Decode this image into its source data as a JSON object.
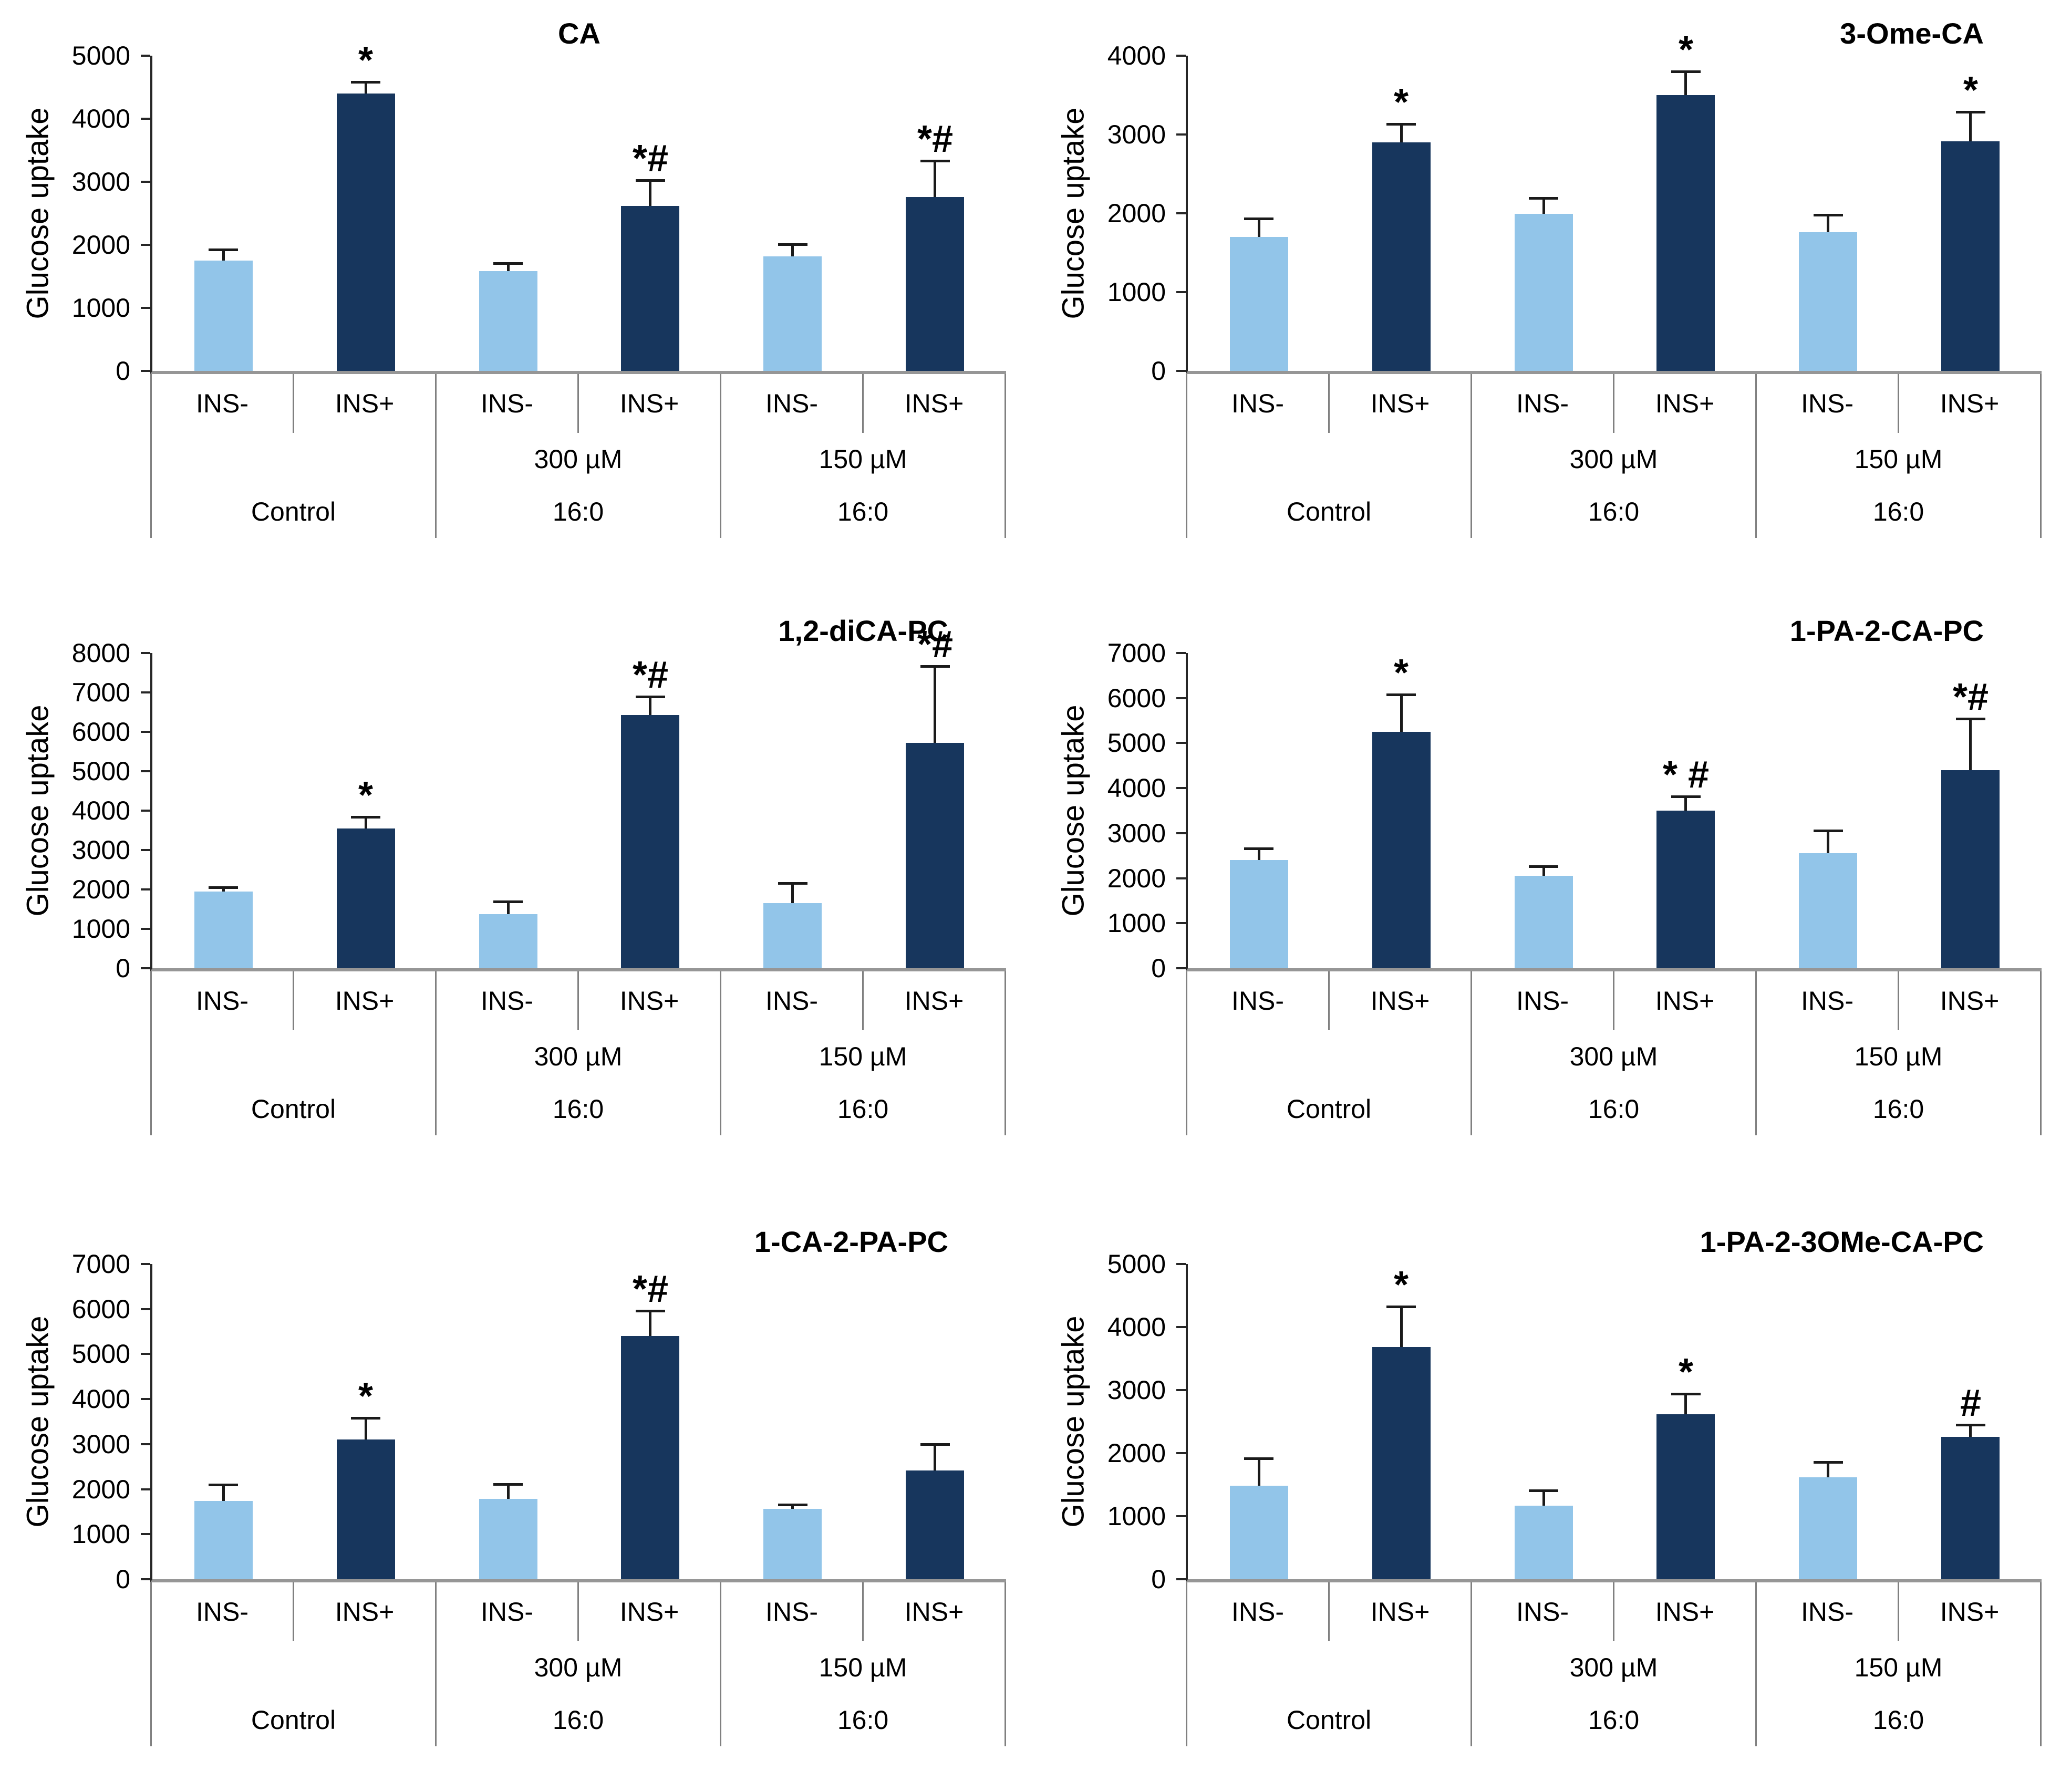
{
  "page": {
    "background": "#ffffff"
  },
  "colors": {
    "ins_minus_bar": "#92C5E9",
    "ins_plus_bar": "#17365D",
    "axis_line": "#262626",
    "baseline": "#969696",
    "table_line": "#808080",
    "error_bar": "#1a1a1a",
    "text": "#000000"
  },
  "series": [
    "INS-",
    "INS+"
  ],
  "chart_data": [
    {
      "type": "bar",
      "title": "CA",
      "ylabel": "Glucose uptake",
      "ylim": [
        0,
        5000
      ],
      "ytick_step": 1000,
      "grid": false,
      "legend": "none",
      "groups": [
        {
          "treatment": "Control",
          "concentration": "",
          "bars": [
            {
              "label": "INS-",
              "value": 1750,
              "error": 150,
              "annotation": ""
            },
            {
              "label": "INS+",
              "value": 4400,
              "error": 160,
              "annotation": "*"
            }
          ]
        },
        {
          "treatment": "16:0",
          "concentration": "300 µM",
          "bars": [
            {
              "label": "INS-",
              "value": 1580,
              "error": 100,
              "annotation": ""
            },
            {
              "label": "INS+",
              "value": 2620,
              "error": 380,
              "annotation": "*#"
            }
          ]
        },
        {
          "treatment": "16:0",
          "concentration": "150 µM",
          "bars": [
            {
              "label": "INS-",
              "value": 1820,
              "error": 170,
              "annotation": ""
            },
            {
              "label": "INS+",
              "value": 2760,
              "error": 550,
              "annotation": "*#"
            }
          ]
        }
      ]
    },
    {
      "type": "bar",
      "title": "3-Ome-CA",
      "ylabel": "Glucose uptake",
      "ylim": [
        0,
        4000
      ],
      "ytick_step": 1000,
      "grid": false,
      "legend": "none",
      "groups": [
        {
          "treatment": "Control",
          "concentration": "",
          "bars": [
            {
              "label": "INS-",
              "value": 1700,
              "error": 210,
              "annotation": ""
            },
            {
              "label": "INS+",
              "value": 2900,
              "error": 210,
              "annotation": "*"
            }
          ]
        },
        {
          "treatment": "16:0",
          "concentration": "300 µM",
          "bars": [
            {
              "label": "INS-",
              "value": 1990,
              "error": 180,
              "annotation": ""
            },
            {
              "label": "INS+",
              "value": 3500,
              "error": 280,
              "annotation": "*"
            }
          ]
        },
        {
          "treatment": "16:0",
          "concentration": "150 µM",
          "bars": [
            {
              "label": "INS-",
              "value": 1760,
              "error": 200,
              "annotation": ""
            },
            {
              "label": "INS+",
              "value": 2910,
              "error": 350,
              "annotation": "*"
            }
          ]
        }
      ]
    },
    {
      "type": "bar",
      "title": "1,2-diCA-PC",
      "ylabel": "Glucose uptake",
      "ylim": [
        0,
        8000
      ],
      "ytick_step": 1000,
      "grid": false,
      "legend": "none",
      "groups": [
        {
          "treatment": "Control",
          "concentration": "",
          "bars": [
            {
              "label": "INS-",
              "value": 1950,
              "error": 60,
              "annotation": ""
            },
            {
              "label": "INS+",
              "value": 3550,
              "error": 250,
              "annotation": "*"
            }
          ]
        },
        {
          "treatment": "16:0",
          "concentration": "300 µM",
          "bars": [
            {
              "label": "INS-",
              "value": 1380,
              "error": 280,
              "annotation": ""
            },
            {
              "label": "INS+",
              "value": 6430,
              "error": 420,
              "annotation": "*#"
            }
          ]
        },
        {
          "treatment": "16:0",
          "concentration": "150 µM",
          "bars": [
            {
              "label": "INS-",
              "value": 1650,
              "error": 470,
              "annotation": ""
            },
            {
              "label": "INS+",
              "value": 5720,
              "error": 1900,
              "annotation": "*#"
            }
          ]
        }
      ]
    },
    {
      "type": "bar",
      "title": "1-PA-2-CA-PC",
      "ylabel": "Glucose uptake",
      "ylim": [
        0,
        7000
      ],
      "ytick_step": 1000,
      "grid": false,
      "legend": "none",
      "groups": [
        {
          "treatment": "Control",
          "concentration": "",
          "bars": [
            {
              "label": "INS-",
              "value": 2400,
              "error": 220,
              "annotation": ""
            },
            {
              "label": "INS+",
              "value": 5250,
              "error": 790,
              "annotation": "*"
            }
          ]
        },
        {
          "treatment": "16:0",
          "concentration": "300 µM",
          "bars": [
            {
              "label": "INS-",
              "value": 2050,
              "error": 170,
              "annotation": ""
            },
            {
              "label": "INS+",
              "value": 3500,
              "error": 280,
              "annotation": "* #"
            }
          ]
        },
        {
          "treatment": "16:0",
          "concentration": "150 µM",
          "bars": [
            {
              "label": "INS-",
              "value": 2550,
              "error": 470,
              "annotation": ""
            },
            {
              "label": "INS+",
              "value": 4400,
              "error": 1110,
              "annotation": "*#"
            }
          ]
        }
      ]
    },
    {
      "type": "bar",
      "title": "1-CA-2-PA-PC",
      "ylabel": "Glucose uptake",
      "ylim": [
        0,
        7000
      ],
      "ytick_step": 1000,
      "grid": false,
      "legend": "none",
      "groups": [
        {
          "treatment": "Control",
          "concentration": "",
          "bars": [
            {
              "label": "INS-",
              "value": 1740,
              "error": 330,
              "annotation": ""
            },
            {
              "label": "INS+",
              "value": 3100,
              "error": 440,
              "annotation": "*"
            }
          ]
        },
        {
          "treatment": "16:0",
          "concentration": "300 µM",
          "bars": [
            {
              "label": "INS-",
              "value": 1790,
              "error": 290,
              "annotation": ""
            },
            {
              "label": "INS+",
              "value": 5400,
              "error": 520,
              "annotation": "*#"
            }
          ]
        },
        {
          "treatment": "16:0",
          "concentration": "150 µM",
          "bars": [
            {
              "label": "INS-",
              "value": 1560,
              "error": 60,
              "annotation": ""
            },
            {
              "label": "INS+",
              "value": 2420,
              "error": 550,
              "annotation": ""
            }
          ]
        }
      ]
    },
    {
      "type": "bar",
      "title": "1-PA-2-3OMe-CA-PC",
      "ylabel": "Glucose uptake",
      "ylim": [
        0,
        5000
      ],
      "ytick_step": 1000,
      "grid": false,
      "legend": "none",
      "groups": [
        {
          "treatment": "Control",
          "concentration": "",
          "bars": [
            {
              "label": "INS-",
              "value": 1480,
              "error": 410,
              "annotation": ""
            },
            {
              "label": "INS+",
              "value": 3680,
              "error": 620,
              "annotation": "*"
            }
          ]
        },
        {
          "treatment": "16:0",
          "concentration": "300 µM",
          "bars": [
            {
              "label": "INS-",
              "value": 1170,
              "error": 220,
              "annotation": ""
            },
            {
              "label": "INS+",
              "value": 2620,
              "error": 300,
              "annotation": "*"
            }
          ]
        },
        {
          "treatment": "16:0",
          "concentration": "150 µM",
          "bars": [
            {
              "label": "INS-",
              "value": 1620,
              "error": 220,
              "annotation": ""
            },
            {
              "label": "INS+",
              "value": 2260,
              "error": 170,
              "annotation": "#"
            }
          ]
        }
      ]
    }
  ]
}
